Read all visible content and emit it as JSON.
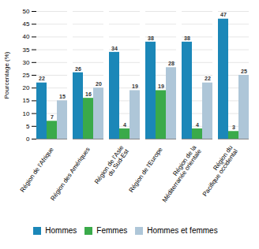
{
  "chart_data": {
    "type": "bar",
    "categories": [
      "Région de l'Afrique",
      "Région des Amériques",
      "Région de l'Asie\ndu Sud-Est",
      "Région de l'Europe",
      "Région de la\nMéditerranée orientale",
      "Région du\nPacifique occidental"
    ],
    "series": [
      {
        "name": "Hommes",
        "color": "#1b87b8",
        "values": [
          22,
          26,
          34,
          38,
          38,
          47
        ]
      },
      {
        "name": "Femmes",
        "color": "#3aaa4a",
        "values": [
          7,
          16,
          4,
          19,
          4,
          3
        ]
      },
      {
        "name": "Hommes et femmes",
        "color": "#aec6d8",
        "values": [
          15,
          20,
          19,
          28,
          22,
          25
        ]
      }
    ],
    "ylabel": "Pourcentage (%)",
    "ylim": [
      0,
      50
    ],
    "yticks": [
      0,
      5,
      10,
      15,
      20,
      25,
      30,
      35,
      40,
      45,
      50
    ],
    "grid": true,
    "data_labels": true,
    "legend": "bottom"
  }
}
